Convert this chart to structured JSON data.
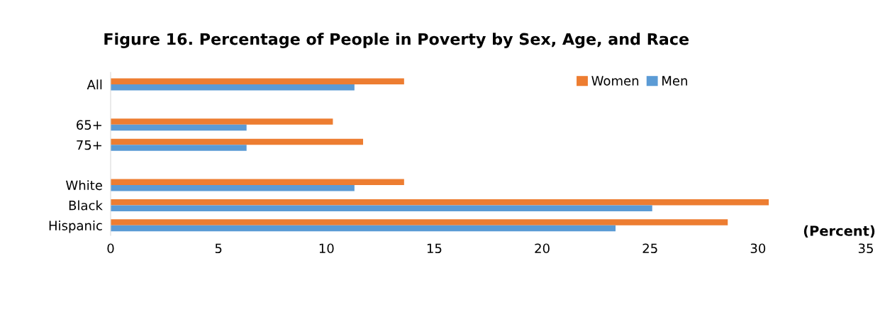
{
  "chart_data": {
    "type": "bar",
    "orientation": "horizontal",
    "title": "Figure 16. Percentage of People in Poverty by Sex, Age, and Race",
    "xlabel": "(Percent)",
    "categories": [
      "All",
      null,
      "65+",
      "75+",
      null,
      "White",
      "Black",
      "Hispanic"
    ],
    "series": [
      {
        "name": "Women",
        "color": "#ed7d31",
        "values": [
          13.6,
          null,
          10.3,
          11.7,
          null,
          13.6,
          30.5,
          28.6
        ]
      },
      {
        "name": "Men",
        "color": "#5b9bd5",
        "values": [
          11.3,
          null,
          6.3,
          6.3,
          null,
          11.3,
          25.1,
          23.4
        ]
      }
    ],
    "xlim": [
      0,
      35
    ],
    "xticks": [
      0,
      5,
      10,
      15,
      20,
      25,
      30,
      35
    ],
    "grid": false,
    "legend": "top right"
  }
}
